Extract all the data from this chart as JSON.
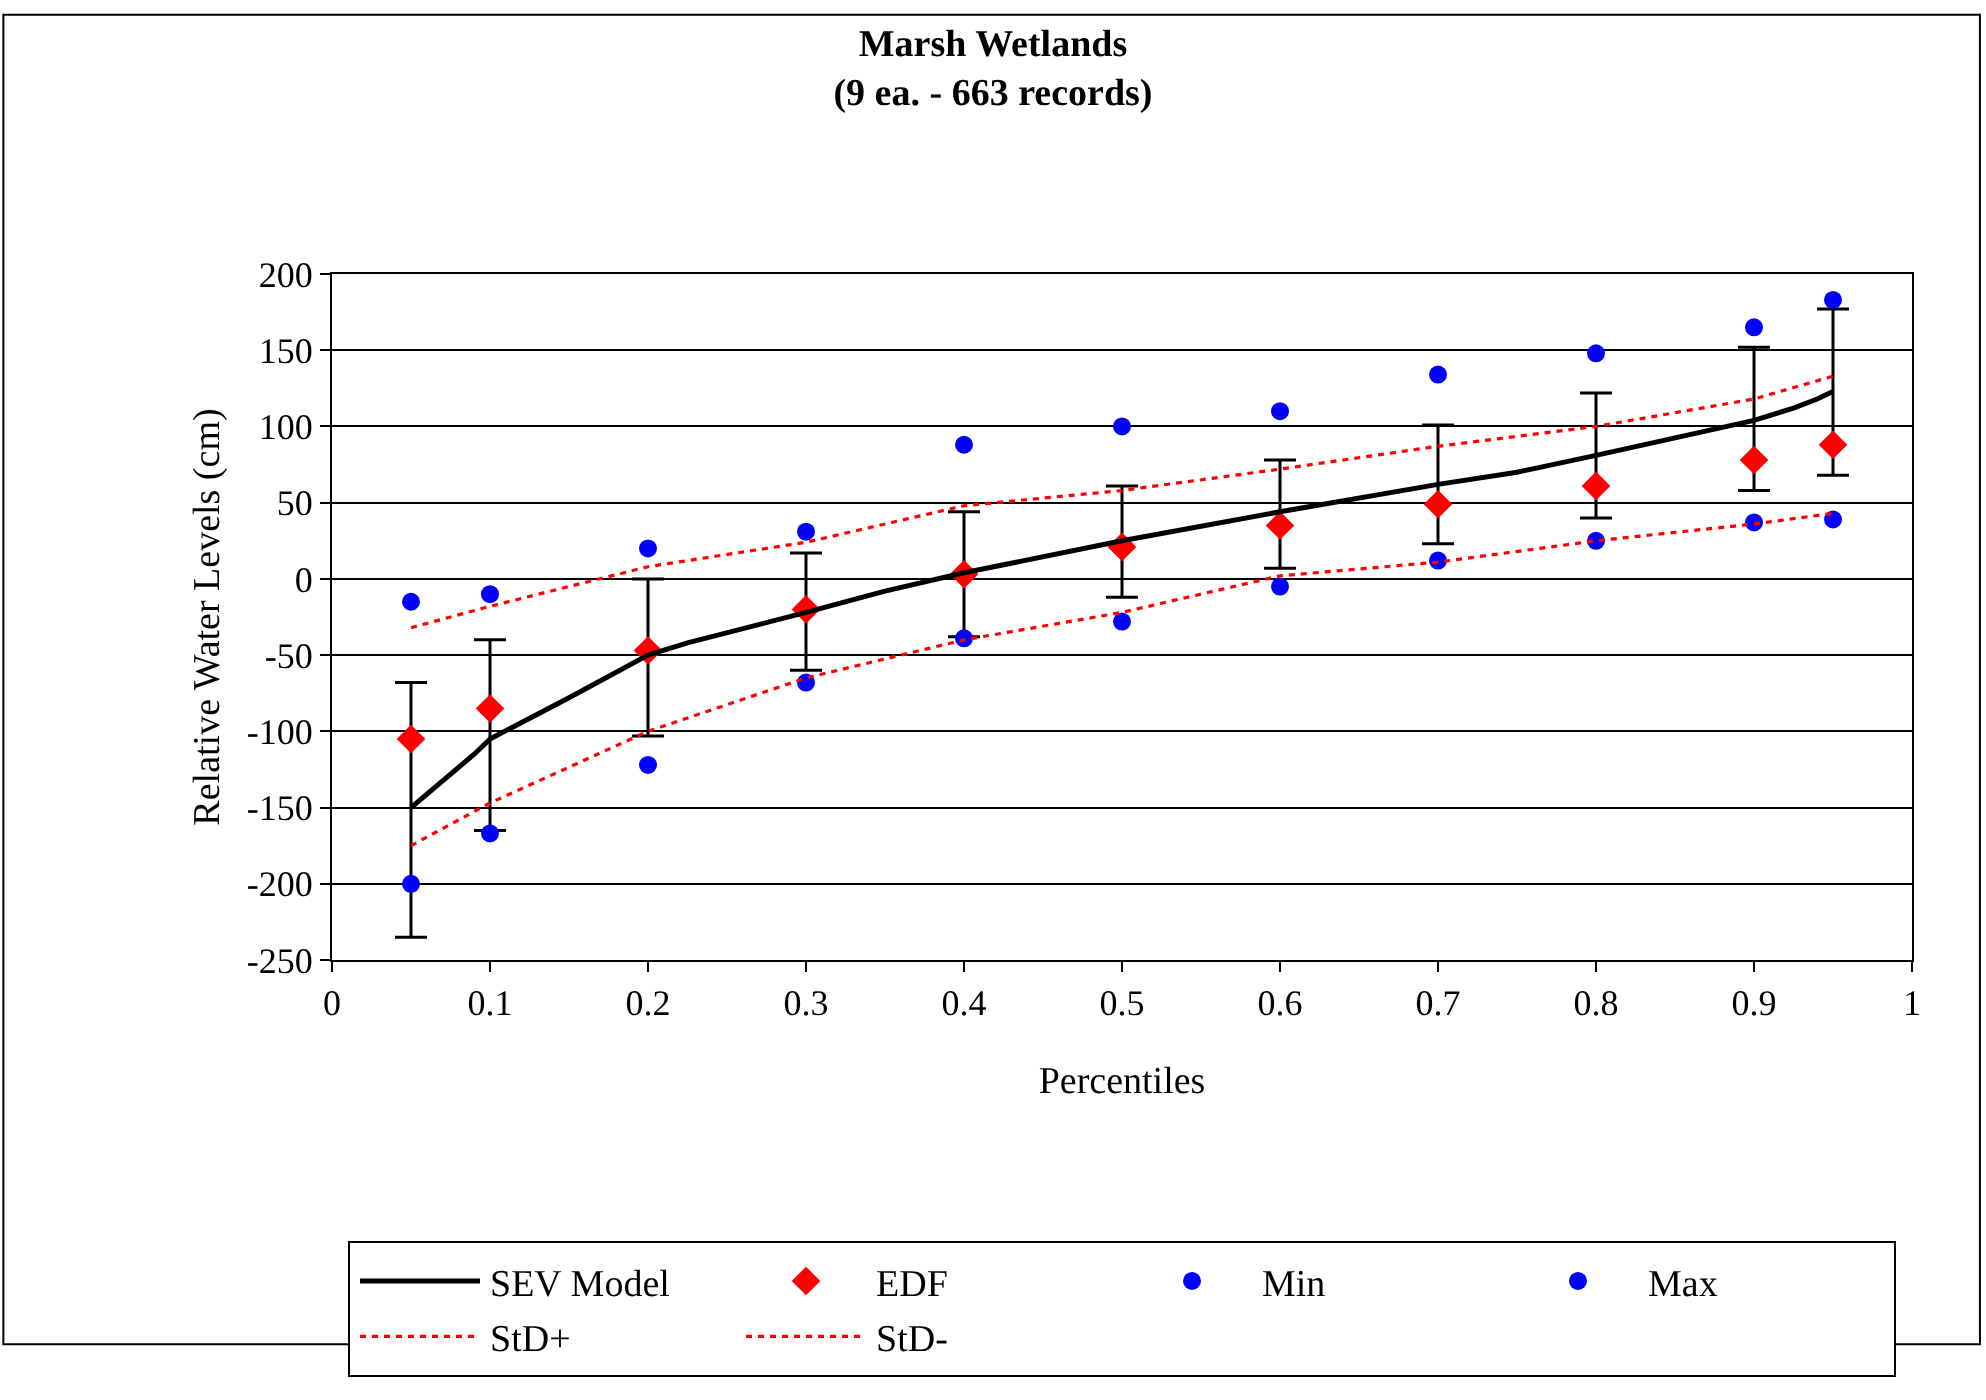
{
  "chart_data": {
    "type": "scatter",
    "title": "Marsh Wetlands",
    "subtitle": "(9 ea. - 663 records)",
    "xlabel": "Percentiles",
    "ylabel": "Relative Water Levels (cm)",
    "xlim": [
      0,
      1
    ],
    "xticks": [
      0,
      0.1,
      0.2,
      0.3,
      0.4,
      0.5,
      0.6,
      0.7,
      0.8,
      0.9,
      1
    ],
    "ylim": [
      -250,
      200
    ],
    "yticks": [
      -250,
      -200,
      -150,
      -100,
      -50,
      0,
      50,
      100,
      150,
      200
    ],
    "grid": "y",
    "legend": "bottom",
    "series": [
      {
        "name": "SEV Model",
        "type": "line",
        "color": "#000000",
        "line_style": "solid",
        "marker": "none",
        "x": [
          0.05,
          0.09,
          0.1,
          0.15,
          0.2,
          0.225,
          0.3,
          0.35,
          0.4,
          0.5,
          0.6,
          0.7,
          0.75,
          0.8,
          0.9,
          0.925,
          0.94,
          0.95
        ],
        "values": [
          -150,
          -115,
          -105,
          -78,
          -50,
          -42,
          -22,
          -8,
          4,
          25,
          44,
          62,
          70,
          81,
          104,
          112,
          118,
          123
        ]
      },
      {
        "name": "EDF",
        "color": "#ff0000",
        "marker": "diamond",
        "x": [
          0.05,
          0.1,
          0.2,
          0.3,
          0.4,
          0.5,
          0.6,
          0.7,
          0.8,
          0.9,
          0.95
        ],
        "values": [
          -105,
          -85,
          -47,
          -20,
          3,
          21,
          35,
          49,
          61,
          78,
          88
        ],
        "errors": [
          [
            -235,
            -68
          ],
          [
            -165,
            -40
          ],
          [
            -103,
            0
          ],
          [
            -60,
            17
          ],
          [
            -38,
            44
          ],
          [
            -12,
            61
          ],
          [
            7,
            78
          ],
          [
            23,
            101
          ],
          [
            40,
            122
          ],
          [
            58,
            152
          ],
          [
            68,
            177
          ]
        ]
      },
      {
        "name": "Min",
        "color": "#0000ff",
        "marker": "circle",
        "x": [
          0.05,
          0.1,
          0.2,
          0.3,
          0.4,
          0.5,
          0.6,
          0.7,
          0.8,
          0.9,
          0.95
        ],
        "values": [
          -200,
          -167,
          -122,
          -68,
          -39,
          -28,
          -5,
          12,
          25,
          37,
          39
        ]
      },
      {
        "name": "Max",
        "color": "#0000ff",
        "marker": "circle",
        "x": [
          0.05,
          0.1,
          0.2,
          0.3,
          0.4,
          0.5,
          0.6,
          0.7,
          0.8,
          0.9,
          0.95
        ],
        "values": [
          -15,
          -10,
          20,
          31,
          88,
          100,
          110,
          134,
          148,
          165,
          183
        ]
      },
      {
        "name": "StD+",
        "type": "line",
        "color": "#ff0000",
        "line_style": "dotted",
        "marker": "none",
        "x": [
          0.05,
          0.1,
          0.2,
          0.3,
          0.4,
          0.5,
          0.6,
          0.7,
          0.8,
          0.9,
          0.95
        ],
        "values": [
          -32,
          -18,
          8,
          24,
          48,
          58,
          72,
          87,
          100,
          118,
          133
        ]
      },
      {
        "name": "StD-",
        "type": "line",
        "color": "#ff0000",
        "line_style": "dotted",
        "marker": "none",
        "x": [
          0.05,
          0.1,
          0.2,
          0.3,
          0.4,
          0.5,
          0.6,
          0.7,
          0.8,
          0.9,
          0.95
        ],
        "values": [
          -175,
          -147,
          -100,
          -65,
          -40,
          -22,
          2,
          11,
          25,
          36,
          43
        ]
      }
    ]
  }
}
